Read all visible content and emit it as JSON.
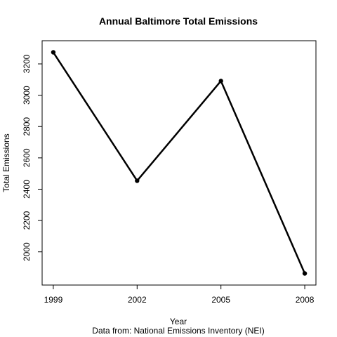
{
  "chart_data": {
    "type": "line",
    "title": "Annual Baltimore Total Emissions",
    "xlabel": "Year",
    "ylabel": "Total Emissions",
    "subtitle": "Data from: National Emissions Inventory (NEI)",
    "x": [
      1999,
      2002,
      2005,
      2008
    ],
    "series": [
      {
        "values": [
          3274,
          2454,
          3091,
          1862
        ]
      }
    ],
    "x_ticks": [
      1999,
      2002,
      2005,
      2008
    ],
    "y_ticks": [
      2000,
      2200,
      2400,
      2600,
      2800,
      3000,
      3200
    ],
    "xlim": [
      1998.6,
      2008.4
    ],
    "ylim": [
      1788,
      3348
    ],
    "grid": false,
    "line_color": "#000000"
  }
}
